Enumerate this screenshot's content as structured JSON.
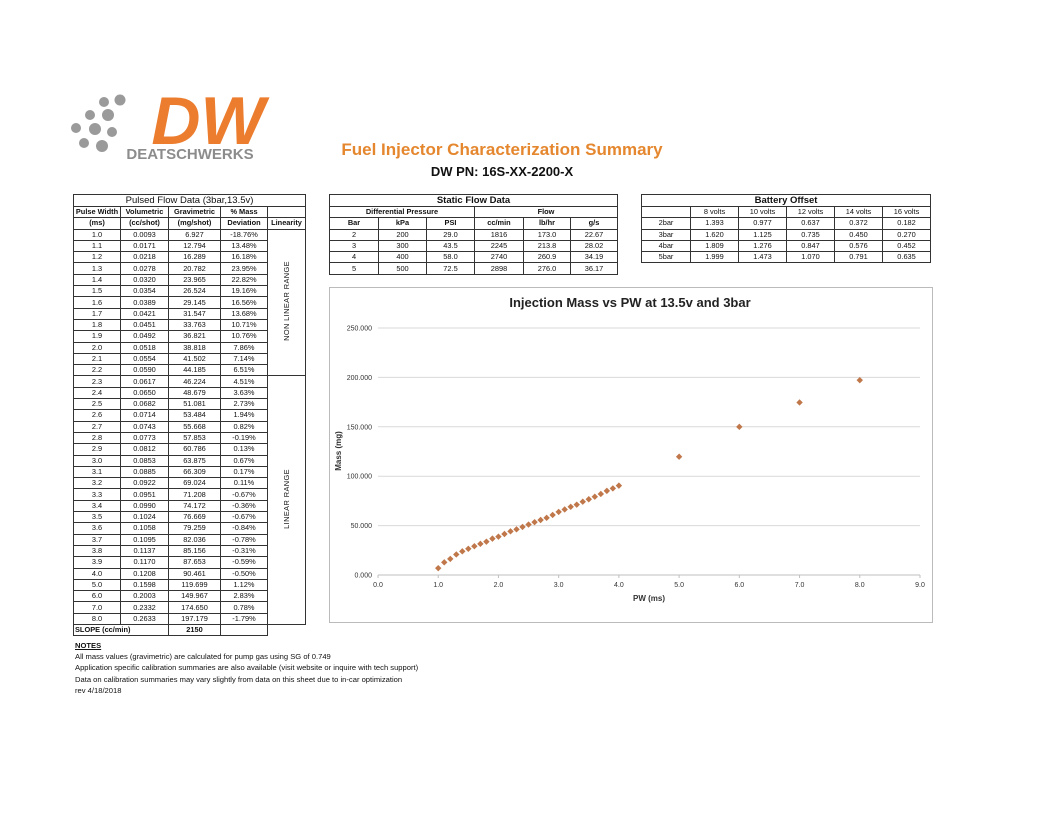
{
  "logo": {
    "mark": "DW",
    "name": "DEATSCHWERKS"
  },
  "header": {
    "title": "Fuel Injector Characterization Summary",
    "part_number": "DW PN: 16S-XX-2200-X"
  },
  "pulsed_flow": {
    "title": "Pulsed Flow Data (3bar,13.5v)",
    "headers_top": [
      "Pulse Width",
      "Volumetric",
      "Gravimetric",
      "% Mass"
    ],
    "headers_bottom": [
      "(ms)",
      "(cc/shot)",
      "(mg/shot)",
      "Deviation",
      "Linearity"
    ],
    "rows": [
      [
        "1.0",
        "0.0093",
        "6.927",
        "-18.76%"
      ],
      [
        "1.1",
        "0.0171",
        "12.794",
        "13.48%"
      ],
      [
        "1.2",
        "0.0218",
        "16.289",
        "16.18%"
      ],
      [
        "1.3",
        "0.0278",
        "20.782",
        "23.95%"
      ],
      [
        "1.4",
        "0.0320",
        "23.965",
        "22.82%"
      ],
      [
        "1.5",
        "0.0354",
        "26.524",
        "19.16%"
      ],
      [
        "1.6",
        "0.0389",
        "29.145",
        "16.56%"
      ],
      [
        "1.7",
        "0.0421",
        "31.547",
        "13.68%"
      ],
      [
        "1.8",
        "0.0451",
        "33.763",
        "10.71%"
      ],
      [
        "1.9",
        "0.0492",
        "36.821",
        "10.76%"
      ],
      [
        "2.0",
        "0.0518",
        "38.818",
        "7.86%"
      ],
      [
        "2.1",
        "0.0554",
        "41.502",
        "7.14%"
      ],
      [
        "2.2",
        "0.0590",
        "44.185",
        "6.51%"
      ],
      [
        "2.3",
        "0.0617",
        "46.224",
        "4.51%"
      ],
      [
        "2.4",
        "0.0650",
        "48.679",
        "3.63%"
      ],
      [
        "2.5",
        "0.0682",
        "51.081",
        "2.73%"
      ],
      [
        "2.6",
        "0.0714",
        "53.484",
        "1.94%"
      ],
      [
        "2.7",
        "0.0743",
        "55.668",
        "0.82%"
      ],
      [
        "2.8",
        "0.0773",
        "57.853",
        "-0.19%"
      ],
      [
        "2.9",
        "0.0812",
        "60.786",
        "0.13%"
      ],
      [
        "3.0",
        "0.0853",
        "63.875",
        "0.67%"
      ],
      [
        "3.1",
        "0.0885",
        "66.309",
        "0.17%"
      ],
      [
        "3.2",
        "0.0922",
        "69.024",
        "0.11%"
      ],
      [
        "3.3",
        "0.0951",
        "71.208",
        "-0.67%"
      ],
      [
        "3.4",
        "0.0990",
        "74.172",
        "-0.36%"
      ],
      [
        "3.5",
        "0.1024",
        "76.669",
        "-0.67%"
      ],
      [
        "3.6",
        "0.1058",
        "79.259",
        "-0.84%"
      ],
      [
        "3.7",
        "0.1095",
        "82.036",
        "-0.78%"
      ],
      [
        "3.8",
        "0.1137",
        "85.156",
        "-0.31%"
      ],
      [
        "3.9",
        "0.1170",
        "87.653",
        "-0.59%"
      ],
      [
        "4.0",
        "0.1208",
        "90.461",
        "-0.50%"
      ],
      [
        "5.0",
        "0.1598",
        "119.699",
        "1.12%"
      ],
      [
        "6.0",
        "0.2003",
        "149.967",
        "2.83%"
      ],
      [
        "7.0",
        "0.2332",
        "174.650",
        "0.78%"
      ],
      [
        "8.0",
        "0.2633",
        "197.179",
        "-1.79%"
      ]
    ],
    "linearity": [
      "NON LINEAR RANGE",
      "LINEAR RANGE"
    ],
    "slope_label": "SLOPE (cc/min)",
    "slope_value": "2150"
  },
  "static_flow": {
    "title": "Static Flow Data",
    "groups": [
      "Differential Pressure",
      "Flow"
    ],
    "headers": [
      "Bar",
      "kPa",
      "PSI",
      "cc/min",
      "lb/hr",
      "g/s"
    ],
    "rows": [
      [
        "2",
        "200",
        "29.0",
        "1816",
        "173.0",
        "22.67"
      ],
      [
        "3",
        "300",
        "43.5",
        "2245",
        "213.8",
        "28.02"
      ],
      [
        "4",
        "400",
        "58.0",
        "2740",
        "260.9",
        "34.19"
      ],
      [
        "5",
        "500",
        "72.5",
        "2898",
        "276.0",
        "36.17"
      ]
    ]
  },
  "battery_offset": {
    "title": "Battery Offset",
    "headers": [
      "8 volts",
      "10 volts",
      "12 volts",
      "14 volts",
      "16 volts"
    ],
    "rows": [
      [
        "2bar",
        "1.393",
        "0.977",
        "0.637",
        "0.372",
        "0.182"
      ],
      [
        "3bar",
        "1.620",
        "1.125",
        "0.735",
        "0.450",
        "0.270"
      ],
      [
        "4bar",
        "1.809",
        "1.276",
        "0.847",
        "0.576",
        "0.452"
      ],
      [
        "5bar",
        "1.999",
        "1.473",
        "1.070",
        "0.791",
        "0.635"
      ]
    ]
  },
  "chart_data": {
    "type": "scatter",
    "title": "Injection Mass vs PW at 13.5v and 3bar",
    "x_label": "PW (ms)",
    "y_label": "Mass (mg)",
    "color": "#c0774a",
    "x": [
      1.0,
      1.1,
      1.2,
      1.3,
      1.4,
      1.5,
      1.6,
      1.7,
      1.8,
      1.9,
      2.0,
      2.1,
      2.2,
      2.3,
      2.4,
      2.5,
      2.6,
      2.7,
      2.8,
      2.9,
      3.0,
      3.1,
      3.2,
      3.3,
      3.4,
      3.5,
      3.6,
      3.7,
      3.8,
      3.9,
      4.0,
      5.0,
      6.0,
      7.0,
      8.0
    ],
    "values": [
      6.927,
      12.794,
      16.289,
      20.782,
      23.965,
      26.524,
      29.145,
      31.547,
      33.763,
      36.821,
      38.818,
      41.502,
      44.185,
      46.224,
      48.679,
      51.081,
      53.484,
      55.668,
      57.853,
      60.786,
      63.875,
      66.309,
      69.024,
      71.208,
      74.172,
      76.669,
      79.259,
      82.036,
      85.156,
      87.653,
      90.461,
      119.699,
      149.967,
      174.65,
      197.179
    ],
    "xlim": [
      0,
      9
    ],
    "xticks": [
      {
        "value": 0,
        "label": "0.0"
      },
      {
        "value": 1,
        "label": "1.0"
      },
      {
        "value": 2,
        "label": "2.0"
      },
      {
        "value": 3,
        "label": "3.0"
      },
      {
        "value": 4,
        "label": "4.0"
      },
      {
        "value": 5,
        "label": "5.0"
      },
      {
        "value": 6,
        "label": "6.0"
      },
      {
        "value": 7,
        "label": "7.0"
      },
      {
        "value": 8,
        "label": "8.0"
      },
      {
        "value": 9,
        "label": "9.0"
      }
    ],
    "ylim": [
      0,
      250
    ],
    "yticks": [
      {
        "value": 0,
        "label": "0.000"
      },
      {
        "value": 50,
        "label": "50.000"
      },
      {
        "value": 100,
        "label": "100.000"
      },
      {
        "value": 150,
        "label": "150.000"
      },
      {
        "value": 200,
        "label": "200.000"
      },
      {
        "value": 250,
        "label": "250.000"
      }
    ],
    "grid": true
  },
  "notes": {
    "title": "NOTES",
    "lines": [
      "All mass values (gravimetric) are calculated for pump gas using SG of 0.749",
      "Application specific calibration summaries are also available (visit website or inquire with tech support)",
      "Data on calibration summaries may vary slightly from data on this sheet due to in-car optimization",
      "rev 4/18/2018"
    ]
  }
}
